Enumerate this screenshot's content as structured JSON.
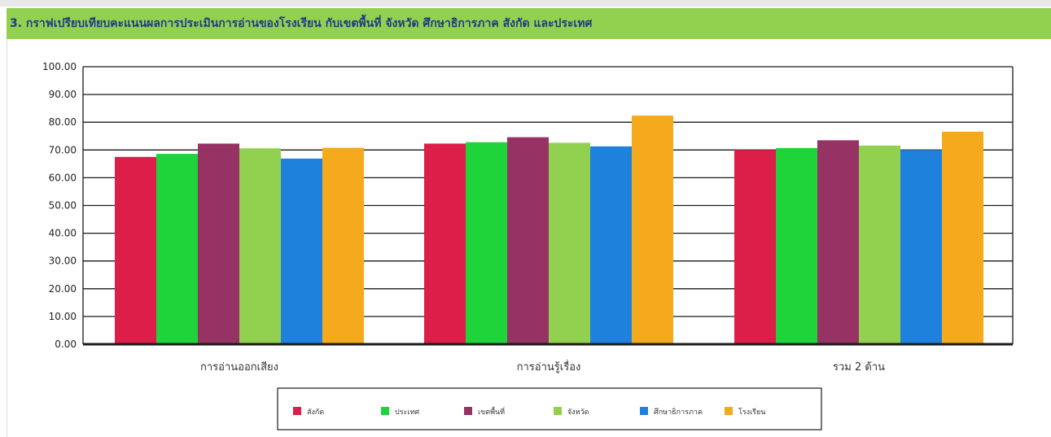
{
  "header": {
    "title": "3. กราฟเปรียบเทียบคะแนนผลการประเมินการอ่านของโรงเรียน กับเขตพื้นที่ จังหวัด ศึกษาธิการภาค สังกัด และประเทศ"
  },
  "colors": {
    "header_bg": "#92d050",
    "header_text": "#1f3b86"
  },
  "chart_data": {
    "type": "bar",
    "title": "",
    "xlabel": "",
    "ylabel": "",
    "ylim": [
      0,
      100
    ],
    "yticks": [
      "0.00",
      "10.00",
      "20.00",
      "30.00",
      "40.00",
      "50.00",
      "60.00",
      "70.00",
      "80.00",
      "90.00",
      "100.00"
    ],
    "grid": true,
    "legend_position": "bottom",
    "categories": [
      "การอ่านออกเสียง",
      "การอ่านรู้เรื่อง",
      "รวม 2 ด้าน"
    ],
    "series": [
      {
        "name": "สังกัด",
        "color": "#dc1e48",
        "values": [
          67.5,
          72.3,
          70.0
        ]
      },
      {
        "name": "ประเทศ",
        "color": "#1ed43a",
        "values": [
          68.6,
          72.8,
          70.7
        ]
      },
      {
        "name": "เขตพื้นที่",
        "color": "#963264",
        "values": [
          72.3,
          74.6,
          73.5
        ]
      },
      {
        "name": "จังหวัด",
        "color": "#92d050",
        "values": [
          70.6,
          72.6,
          71.6
        ]
      },
      {
        "name": "ศึกษาธิการภาค",
        "color": "#1e82dc",
        "values": [
          66.9,
          71.3,
          70.0
        ]
      },
      {
        "name": "โรงเรียน",
        "color": "#f5aa1e",
        "values": [
          70.8,
          82.4,
          76.6
        ]
      }
    ]
  }
}
